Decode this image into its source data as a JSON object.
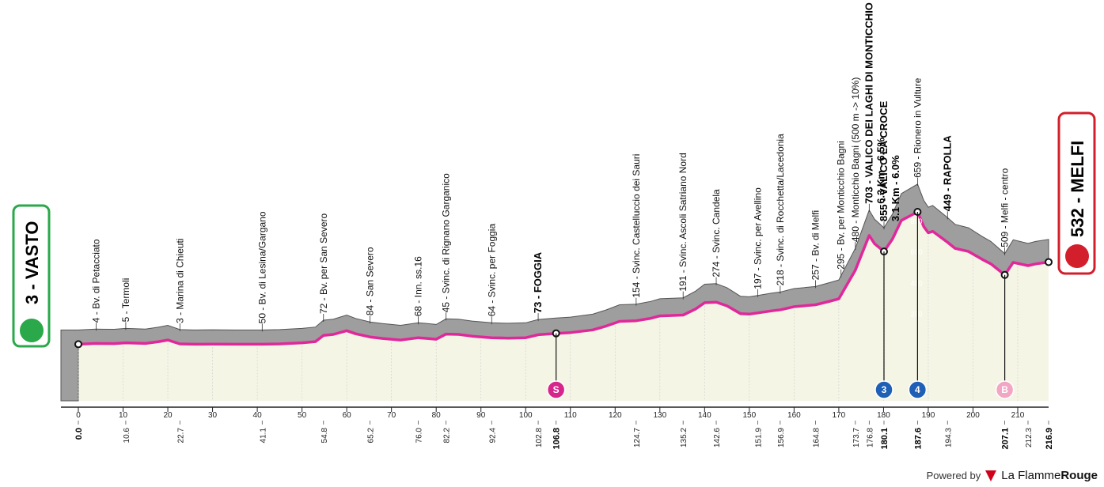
{
  "chart_data": {
    "type": "area",
    "title": "",
    "xlim": [
      0,
      216.9
    ],
    "x_ticks": [
      0,
      10,
      20,
      30,
      40,
      50,
      60,
      70,
      80,
      90,
      100,
      110,
      120,
      130,
      140,
      150,
      160,
      170,
      180,
      190,
      200,
      210
    ],
    "alt_ticks": [
      0,
      200,
      400,
      600,
      800
    ],
    "profile": [
      [
        0,
        3
      ],
      [
        4,
        8
      ],
      [
        8,
        7
      ],
      [
        10.6,
        12
      ],
      [
        15,
        8
      ],
      [
        18,
        20
      ],
      [
        20,
        30
      ],
      [
        22.7,
        5
      ],
      [
        26,
        3
      ],
      [
        30,
        4
      ],
      [
        35,
        3
      ],
      [
        41.1,
        3
      ],
      [
        45,
        5
      ],
      [
        50,
        12
      ],
      [
        53,
        20
      ],
      [
        54.8,
        60
      ],
      [
        57,
        66
      ],
      [
        60,
        90
      ],
      [
        62,
        70
      ],
      [
        65.2,
        50
      ],
      [
        68,
        40
      ],
      [
        70,
        35
      ],
      [
        72,
        30
      ],
      [
        76,
        45
      ],
      [
        78,
        40
      ],
      [
        80,
        35
      ],
      [
        82.2,
        68
      ],
      [
        85,
        66
      ],
      [
        88,
        55
      ],
      [
        92.4,
        45
      ],
      [
        96,
        42
      ],
      [
        100,
        45
      ],
      [
        102.8,
        64
      ],
      [
        106.8,
        73
      ],
      [
        110,
        78
      ],
      [
        115,
        95
      ],
      [
        118,
        120
      ],
      [
        121,
        150
      ],
      [
        124.7,
        154
      ],
      [
        128,
        170
      ],
      [
        130,
        185
      ],
      [
        135.2,
        191
      ],
      [
        138,
        230
      ],
      [
        140,
        270
      ],
      [
        142.6,
        274
      ],
      [
        145,
        250
      ],
      [
        148,
        200
      ],
      [
        150,
        197
      ],
      [
        152,
        205
      ],
      [
        155,
        218
      ],
      [
        157,
        225
      ],
      [
        160,
        245
      ],
      [
        164.8,
        257
      ],
      [
        168,
        280
      ],
      [
        170,
        295
      ],
      [
        173.7,
        480
      ],
      [
        176.8,
        703
      ],
      [
        178,
        650
      ],
      [
        180.1,
        600
      ],
      [
        182,
        680
      ],
      [
        184,
        800
      ],
      [
        187.6,
        855
      ],
      [
        189,
        760
      ],
      [
        190,
        720
      ],
      [
        191,
        730
      ],
      [
        194.3,
        659
      ],
      [
        196,
        620
      ],
      [
        199,
        600
      ],
      [
        202,
        550
      ],
      [
        204,
        520
      ],
      [
        207.1,
        449
      ],
      [
        209,
        530
      ],
      [
        212.3,
        509
      ],
      [
        214,
        520
      ],
      [
        216.9,
        532
      ]
    ],
    "road_offset_m": 100,
    "start_label": "3 - VASTO",
    "finish_label": "532 - MELFI",
    "waypoints": [
      {
        "km": 4,
        "alt": "4",
        "name": "Bv. di Petacciato",
        "bold": false
      },
      {
        "km": 10.6,
        "alt": "5",
        "name": "Termoli",
        "bold": false
      },
      {
        "km": 22.7,
        "alt": "3",
        "name": "Marina di Chieuti",
        "bold": false
      },
      {
        "km": 41.1,
        "alt": "50",
        "name": "Bv. di Lesina/Gargano",
        "bold": false
      },
      {
        "km": 54.8,
        "alt": "72",
        "name": "Bv. per San Severo",
        "bold": false
      },
      {
        "km": 65.2,
        "alt": "84",
        "name": "San Severo",
        "bold": false
      },
      {
        "km": 76.0,
        "alt": "68",
        "name": "Inn. ss.16",
        "bold": false
      },
      {
        "km": 82.2,
        "alt": "45",
        "name": "Svinc. di Rignano Garganico",
        "bold": false
      },
      {
        "km": 92.4,
        "alt": "64",
        "name": "Svinc. per Foggia",
        "bold": false
      },
      {
        "km": 102.8,
        "alt": "73",
        "name": "FOGGIA",
        "bold": true
      },
      {
        "km": 124.7,
        "alt": "154",
        "name": "Svinc. Castelluccio dei Sauri",
        "bold": false
      },
      {
        "km": 135.2,
        "alt": "191",
        "name": "Svinc. Ascoli Satriano Nord",
        "bold": false
      },
      {
        "km": 142.6,
        "alt": "274",
        "name": "Svinc. Candela",
        "bold": false
      },
      {
        "km": 151.9,
        "alt": "197",
        "name": "Svinc. per Avellino",
        "bold": false
      },
      {
        "km": 156.9,
        "alt": "218",
        "name": "Svinc. di Rocchetta/Lacedonia",
        "bold": false
      },
      {
        "km": 164.8,
        "alt": "257",
        "name": "Bv. di Melfi",
        "bold": false
      },
      {
        "km": 170.5,
        "alt": "295",
        "name": "Bv. per Monticchio Bagni",
        "bold": false
      },
      {
        "km": 173.7,
        "alt": "480",
        "name": "Monticchio Bagni (500 m -> 10%)",
        "bold": false
      },
      {
        "km": 176.8,
        "alt": "703",
        "name": "VALICO DEI LAGHI DI MONTICCHIO",
        "bold": true,
        "sub": "6.3 Km - 6.5%"
      },
      {
        "km": 180.1,
        "alt": "855",
        "name": "VALICO LA CROCE",
        "bold": true,
        "sub": "3.1 Km - 6.0%"
      },
      {
        "km": 187.6,
        "alt": "659",
        "name": "Rionero in Vulture",
        "bold": false
      },
      {
        "km": 194.3,
        "alt": "449",
        "name": "RAPOLLA",
        "bold": true
      },
      {
        "km": 207.1,
        "alt": "509",
        "name": "Melfi - centro",
        "bold": false
      }
    ],
    "km_labels": [
      {
        "km": 0,
        "label": "0.0",
        "bold": true
      },
      {
        "km": 10.6,
        "label": "10.6",
        "bold": false
      },
      {
        "km": 22.7,
        "label": "22.7",
        "bold": false
      },
      {
        "km": 41.1,
        "label": "41.1",
        "bold": false
      },
      {
        "km": 54.8,
        "label": "54.8",
        "bold": false
      },
      {
        "km": 65.2,
        "label": "65.2",
        "bold": false
      },
      {
        "km": 76.0,
        "label": "76.0",
        "bold": false
      },
      {
        "km": 82.2,
        "label": "82.2",
        "bold": false
      },
      {
        "km": 92.4,
        "label": "92.4",
        "bold": false
      },
      {
        "km": 102.8,
        "label": "102.8",
        "bold": false
      },
      {
        "km": 106.8,
        "label": "106.8",
        "bold": true
      },
      {
        "km": 124.7,
        "label": "124.7",
        "bold": false
      },
      {
        "km": 135.2,
        "label": "135.2",
        "bold": false
      },
      {
        "km": 142.6,
        "label": "142.6",
        "bold": false
      },
      {
        "km": 151.9,
        "label": "151.9",
        "bold": false
      },
      {
        "km": 156.9,
        "label": "156.9",
        "bold": false
      },
      {
        "km": 164.8,
        "label": "164.8",
        "bold": false
      },
      {
        "km": 173.7,
        "label": "173.7",
        "bold": false
      },
      {
        "km": 176.8,
        "label": "176.8",
        "bold": false
      },
      {
        "km": 180.1,
        "label": "180.1",
        "bold": true
      },
      {
        "km": 187.6,
        "label": "187.6",
        "bold": true
      },
      {
        "km": 194.3,
        "label": "194.3",
        "bold": false
      },
      {
        "km": 207.1,
        "label": "207.1",
        "bold": true
      },
      {
        "km": 212.3,
        "label": "212.3",
        "bold": false
      },
      {
        "km": 216.9,
        "label": "216.9",
        "bold": true
      }
    ],
    "markers": [
      {
        "km": 106.8,
        "label": "S",
        "type": "sprint",
        "color": "#d6268c"
      },
      {
        "km": 180.1,
        "label": "3",
        "type": "climb",
        "color": "#1f5fb5"
      },
      {
        "km": 187.6,
        "label": "4",
        "type": "climb",
        "color": "#1f5fb5"
      },
      {
        "km": 207.1,
        "label": "B",
        "type": "bonus",
        "color": "#f3a6c4"
      }
    ],
    "colors": {
      "mountain": "#9e9e9e",
      "road": "#e0289a",
      "plain": "#f5f5e6",
      "start": "#2aa84a",
      "finish": "#d31f2c"
    }
  },
  "footer": {
    "powered_by": "Powered by",
    "brand_a": "La Flamme",
    "brand_b": "Rouge"
  }
}
